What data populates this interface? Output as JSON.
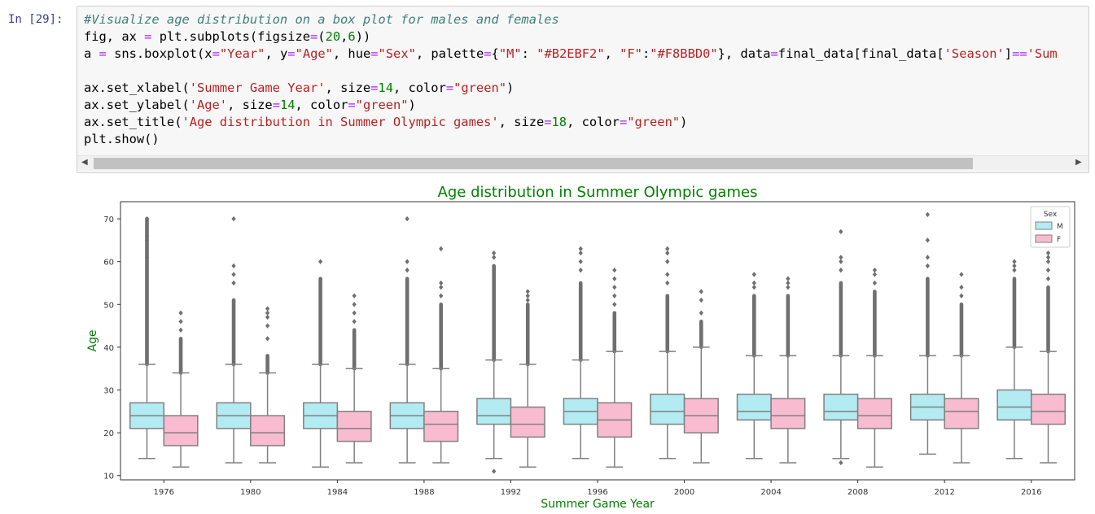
{
  "cell": {
    "prompt": "In [29]:",
    "code_lines": [
      [
        {
          "t": "#Visualize age distribution on a box plot for males and females",
          "c": "cm"
        }
      ],
      [
        {
          "t": "fig, ax "
        },
        {
          "t": "=",
          "c": "op"
        },
        {
          "t": " plt.subplots(figsize"
        },
        {
          "t": "=",
          "c": "op"
        },
        {
          "t": "("
        },
        {
          "t": "20",
          "c": "nu"
        },
        {
          "t": ","
        },
        {
          "t": "6",
          "c": "nu"
        },
        {
          "t": "))"
        }
      ],
      [
        {
          "t": "a "
        },
        {
          "t": "=",
          "c": "op"
        },
        {
          "t": " sns.boxplot(x"
        },
        {
          "t": "=",
          "c": "op"
        },
        {
          "t": "\"Year\"",
          "c": "st"
        },
        {
          "t": ", y"
        },
        {
          "t": "=",
          "c": "op"
        },
        {
          "t": "\"Age\"",
          "c": "st"
        },
        {
          "t": ", hue"
        },
        {
          "t": "=",
          "c": "op"
        },
        {
          "t": "\"Sex\"",
          "c": "st"
        },
        {
          "t": ", palette"
        },
        {
          "t": "=",
          "c": "op"
        },
        {
          "t": "{"
        },
        {
          "t": "\"M\"",
          "c": "st"
        },
        {
          "t": ": "
        },
        {
          "t": "\"#B2EBF2\"",
          "c": "st"
        },
        {
          "t": ", "
        },
        {
          "t": "\"F\"",
          "c": "st"
        },
        {
          "t": ":"
        },
        {
          "t": "\"#F8BBD0\"",
          "c": "st"
        },
        {
          "t": "}, data"
        },
        {
          "t": "=",
          "c": "op"
        },
        {
          "t": "final_data[final_data["
        },
        {
          "t": "'Season'",
          "c": "st"
        },
        {
          "t": "]"
        },
        {
          "t": "==",
          "c": "op"
        },
        {
          "t": "'Sum",
          "c": "st"
        }
      ],
      [
        {
          "t": ""
        }
      ],
      [
        {
          "t": "ax.set_xlabel("
        },
        {
          "t": "'Summer Game Year'",
          "c": "st"
        },
        {
          "t": ", size"
        },
        {
          "t": "=",
          "c": "op"
        },
        {
          "t": "14",
          "c": "nu"
        },
        {
          "t": ", color"
        },
        {
          "t": "=",
          "c": "op"
        },
        {
          "t": "\"green\"",
          "c": "st"
        },
        {
          "t": ")"
        }
      ],
      [
        {
          "t": "ax.set_ylabel("
        },
        {
          "t": "'Age'",
          "c": "st"
        },
        {
          "t": ", size"
        },
        {
          "t": "=",
          "c": "op"
        },
        {
          "t": "14",
          "c": "nu"
        },
        {
          "t": ", color"
        },
        {
          "t": "=",
          "c": "op"
        },
        {
          "t": "\"green\"",
          "c": "st"
        },
        {
          "t": ")"
        }
      ],
      [
        {
          "t": "ax.set_title("
        },
        {
          "t": "'Age distribution in Summer Olympic games'",
          "c": "st"
        },
        {
          "t": ", size"
        },
        {
          "t": "=",
          "c": "op"
        },
        {
          "t": "18",
          "c": "nu"
        },
        {
          "t": ", color"
        },
        {
          "t": "=",
          "c": "op"
        },
        {
          "t": "\"green\"",
          "c": "st"
        },
        {
          "t": ")"
        }
      ],
      [
        {
          "t": "plt.show()"
        }
      ]
    ],
    "scroll_left_icon": "◀",
    "scroll_right_icon": "▶"
  },
  "colors": {
    "male_fill": "#B2EBF2",
    "female_fill": "#F8BBD0",
    "title_color": "green",
    "stroke": "#808080"
  },
  "chart_data": {
    "type": "box",
    "title": "Age distribution in Summer Olympic games",
    "xlabel": "Summer Game Year",
    "ylabel": "Age",
    "ylim": [
      9,
      74
    ],
    "yticks": [
      10,
      20,
      30,
      40,
      50,
      60,
      70
    ],
    "categories": [
      "1976",
      "1980",
      "1984",
      "1988",
      "1992",
      "1996",
      "2000",
      "2004",
      "2008",
      "2012",
      "2016"
    ],
    "legend": {
      "title": "Sex",
      "position": "top-right",
      "entries": [
        "M",
        "F"
      ]
    },
    "series": [
      {
        "name": "M",
        "boxes": [
          {
            "min": 14,
            "q1": 21,
            "median": 24,
            "q3": 27,
            "max": 36,
            "outliers_top": [
              36,
              70
            ],
            "outliers_bottom": [],
            "extremes": [
              61,
              65,
              66,
              70
            ]
          },
          {
            "min": 13,
            "q1": 21,
            "median": 24,
            "q3": 27,
            "max": 36,
            "outliers_top": [
              36,
              51
            ],
            "outliers_bottom": [],
            "extremes": [
              55,
              57,
              59,
              70
            ]
          },
          {
            "min": 12,
            "q1": 21,
            "median": 24,
            "q3": 27,
            "max": 36,
            "outliers_top": [
              36,
              56
            ],
            "outliers_bottom": [],
            "extremes": [
              60
            ]
          },
          {
            "min": 13,
            "q1": 21,
            "median": 24,
            "q3": 27,
            "max": 36,
            "outliers_top": [
              36,
              56
            ],
            "outliers_bottom": [],
            "extremes": [
              58,
              60,
              70
            ]
          },
          {
            "min": 14,
            "q1": 22,
            "median": 24,
            "q3": 28,
            "max": 37,
            "outliers_top": [
              37,
              59
            ],
            "outliers_bottom": [
              11
            ],
            "extremes": [
              61,
              62
            ]
          },
          {
            "min": 14,
            "q1": 22,
            "median": 25,
            "q3": 28,
            "max": 37,
            "outliers_top": [
              37,
              55
            ],
            "outliers_bottom": [],
            "extremes": [
              58,
              60,
              62,
              63
            ]
          },
          {
            "min": 14,
            "q1": 22,
            "median": 25,
            "q3": 29,
            "max": 39,
            "outliers_top": [
              39,
              52
            ],
            "outliers_bottom": [],
            "extremes": [
              55,
              57,
              60,
              62,
              63
            ]
          },
          {
            "min": 14,
            "q1": 23,
            "median": 25,
            "q3": 29,
            "max": 38,
            "outliers_top": [
              38,
              52
            ],
            "outliers_bottom": [],
            "extremes": [
              54,
              55,
              57
            ]
          },
          {
            "min": 14,
            "q1": 23,
            "median": 25,
            "q3": 29,
            "max": 38,
            "outliers_top": [
              38,
              55
            ],
            "outliers_bottom": [
              13
            ],
            "extremes": [
              58,
              60,
              61,
              67
            ]
          },
          {
            "min": 15,
            "q1": 23,
            "median": 26,
            "q3": 29,
            "max": 38,
            "outliers_top": [
              38,
              56
            ],
            "outliers_bottom": [],
            "extremes": [
              59,
              61,
              65,
              71
            ]
          },
          {
            "min": 14,
            "q1": 23,
            "median": 26,
            "q3": 30,
            "max": 40,
            "outliers_top": [
              40,
              56
            ],
            "outliers_bottom": [],
            "extremes": [
              58,
              59,
              60
            ]
          }
        ]
      },
      {
        "name": "F",
        "boxes": [
          {
            "min": 12,
            "q1": 17,
            "median": 20,
            "q3": 24,
            "max": 34,
            "outliers_top": [
              34,
              42
            ],
            "outliers_bottom": [],
            "extremes": [
              44,
              46,
              48
            ]
          },
          {
            "min": 13,
            "q1": 17,
            "median": 20,
            "q3": 24,
            "max": 34,
            "outliers_top": [
              34,
              38
            ],
            "outliers_bottom": [],
            "extremes": [
              42,
              45,
              47,
              48,
              49
            ]
          },
          {
            "min": 13,
            "q1": 18,
            "median": 21,
            "q3": 25,
            "max": 35,
            "outliers_top": [
              35,
              44
            ],
            "outliers_bottom": [],
            "extremes": [
              46,
              48,
              50,
              52
            ]
          },
          {
            "min": 13,
            "q1": 18,
            "median": 22,
            "q3": 25,
            "max": 35,
            "outliers_top": [
              35,
              50
            ],
            "outliers_bottom": [],
            "extremes": [
              52,
              54,
              55,
              63
            ]
          },
          {
            "min": 12,
            "q1": 19,
            "median": 22,
            "q3": 26,
            "max": 36,
            "outliers_top": [
              36,
              50
            ],
            "outliers_bottom": [],
            "extremes": [
              51,
              52,
              53
            ]
          },
          {
            "min": 12,
            "q1": 19,
            "median": 23,
            "q3": 27,
            "max": 39,
            "outliers_top": [
              39,
              48
            ],
            "outliers_bottom": [],
            "extremes": [
              50,
              52,
              54,
              56,
              58
            ]
          },
          {
            "min": 13,
            "q1": 20,
            "median": 24,
            "q3": 28,
            "max": 40,
            "outliers_top": [
              40,
              46
            ],
            "outliers_bottom": [],
            "extremes": [
              48,
              51,
              53
            ]
          },
          {
            "min": 13,
            "q1": 21,
            "median": 24,
            "q3": 28,
            "max": 38,
            "outliers_top": [
              38,
              52
            ],
            "outliers_bottom": [],
            "extremes": [
              54,
              55,
              56
            ]
          },
          {
            "min": 12,
            "q1": 21,
            "median": 24,
            "q3": 28,
            "max": 38,
            "outliers_top": [
              38,
              53
            ],
            "outliers_bottom": [],
            "extremes": [
              55,
              57,
              58
            ]
          },
          {
            "min": 13,
            "q1": 21,
            "median": 25,
            "q3": 28,
            "max": 38,
            "outliers_top": [
              38,
              50
            ],
            "outliers_bottom": [],
            "extremes": [
              52,
              54,
              57
            ]
          },
          {
            "min": 13,
            "q1": 22,
            "median": 25,
            "q3": 29,
            "max": 39,
            "outliers_top": [
              39,
              54
            ],
            "outliers_bottom": [],
            "extremes": [
              56,
              58,
              60,
              61,
              62
            ]
          }
        ]
      }
    ]
  }
}
